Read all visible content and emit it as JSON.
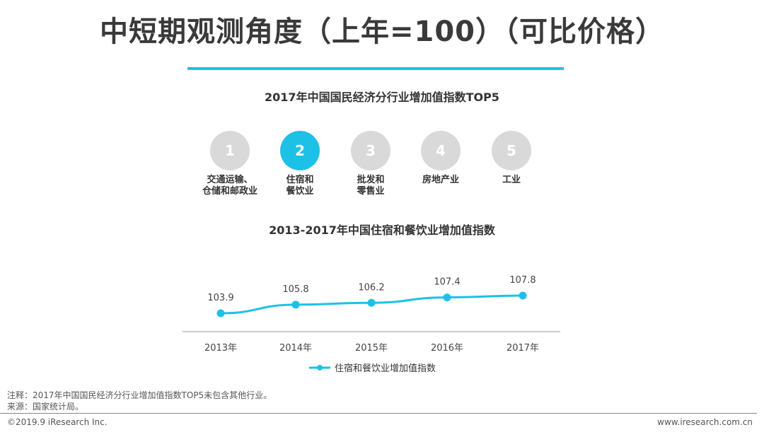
{
  "page": {
    "title": "中短期观测角度（上年=100）（可比价格）",
    "subtitle_top5": "2017年中国国民经济分行业增加值指数TOP5",
    "subtitle_chart": "2013-2017年中国住宿和餐饮业增加值指数",
    "note": "注释：2017年中国国民经济分行业增加值指数TOP5未包含其他行业。",
    "source": "来源：国家统计局。",
    "copyright": "©2019.9 iResearch Inc.",
    "website": "www.iresearch.com.cn"
  },
  "colors": {
    "accent": "#1dc1e6",
    "inactive": "#d9d9d9"
  },
  "top5": [
    {
      "rank": "1",
      "label": "交通运输、\n仓储和邮政业",
      "active": false
    },
    {
      "rank": "2",
      "label": "住宿和\n餐饮业",
      "active": true
    },
    {
      "rank": "3",
      "label": "批发和\n零售业",
      "active": false
    },
    {
      "rank": "4",
      "label": "房地产业",
      "active": false
    },
    {
      "rank": "5",
      "label": "工业",
      "active": false
    }
  ],
  "chart_data": {
    "type": "line",
    "x": [
      "2013年",
      "2014年",
      "2015年",
      "2016年",
      "2017年"
    ],
    "series": [
      {
        "name": "住宿和餐饮业增加值指数",
        "values": [
          103.9,
          105.8,
          106.2,
          107.4,
          107.8
        ],
        "color": "#1dc1e6"
      }
    ],
    "data_labels": [
      "103.9",
      "105.8",
      "106.2",
      "107.4",
      "107.8"
    ],
    "legend": "bottom"
  }
}
